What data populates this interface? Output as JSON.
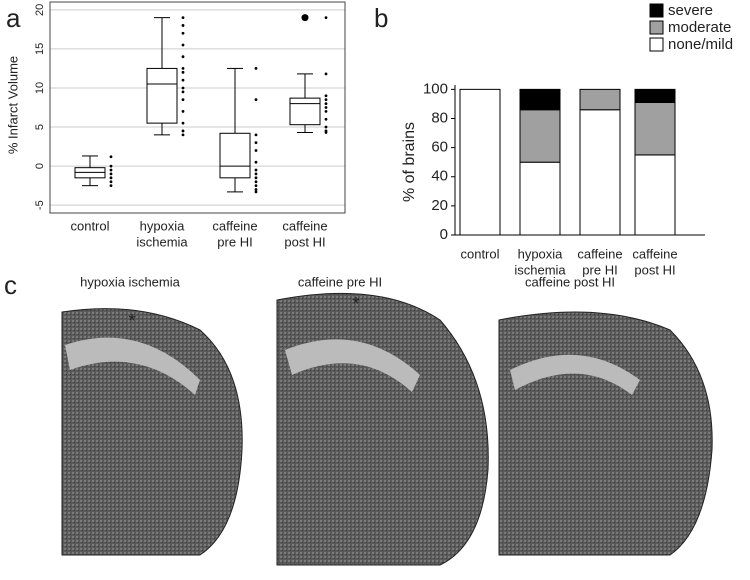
{
  "panel_labels": [
    "a",
    "b",
    "c"
  ],
  "chart_data": [
    {
      "type": "box",
      "y_label": "% Infarct Volume",
      "categories": [
        [
          "control"
        ],
        [
          "hypoxia",
          "ischemia"
        ],
        [
          "caffeine",
          "pre HI"
        ],
        [
          "caffeine",
          "post HI"
        ]
      ],
      "ylim": [
        -6,
        21
      ],
      "yticks": [
        -5,
        0,
        5,
        10,
        15,
        20
      ],
      "grid": true,
      "boxes": [
        {
          "whisker_low": -2.5,
          "q1": -1.5,
          "median": -0.8,
          "q3": -0.2,
          "whisker_high": 1.3,
          "points": [
            1.2,
            0,
            -0.5,
            -1,
            -1.5,
            -2,
            -2.5
          ],
          "outliers": []
        },
        {
          "whisker_low": 4,
          "q1": 5.5,
          "median": 10.5,
          "q3": 12.5,
          "whisker_high": 19,
          "points": [
            19,
            18,
            17,
            15.5,
            14,
            12.5,
            12,
            11,
            10,
            9.5,
            8.5,
            7,
            5.5,
            4.5,
            4
          ],
          "outliers": []
        },
        {
          "whisker_low": -3.3,
          "q1": -1.5,
          "median": 0,
          "q3": 4.2,
          "whisker_high": 12.5,
          "points": [
            12.5,
            8.5,
            4,
            3,
            2,
            0.5,
            -0.5,
            -1,
            -1.5,
            -2,
            -2.5,
            -3,
            -3.3
          ],
          "outliers": []
        },
        {
          "whisker_low": 4.3,
          "q1": 5.3,
          "median": 8,
          "q3": 8.7,
          "whisker_high": 11.8,
          "points": [
            19,
            11.8,
            9,
            8.5,
            8,
            7.5,
            7,
            6,
            5,
            4.5,
            4.3
          ],
          "outliers": [
            19
          ]
        }
      ]
    },
    {
      "type": "stacked_bar",
      "y_label": "% of brains",
      "categories": [
        [
          "control"
        ],
        [
          "hypoxia",
          "ischemia"
        ],
        [
          "caffeine",
          "pre HI"
        ],
        [
          "caffeine",
          "post HI"
        ]
      ],
      "ylim": [
        0,
        103
      ],
      "yticks": [
        0,
        20,
        40,
        60,
        80,
        100
      ],
      "legend": "upper-right",
      "series": [
        {
          "name": "none/mild",
          "color": "#ffffff",
          "values": [
            100,
            50,
            86,
            55
          ]
        },
        {
          "name": "moderate",
          "color": "#a0a0a0",
          "values": [
            0,
            36,
            14,
            36
          ]
        },
        {
          "name": "severe",
          "color": "#000000",
          "values": [
            0,
            14,
            0,
            9
          ]
        }
      ]
    }
  ],
  "images": [
    {
      "caption": "hypoxia ischemia",
      "asterisk": "*"
    },
    {
      "caption": "caffeine pre HI",
      "asterisk": "*"
    },
    {
      "caption": "caffeine post HI"
    }
  ]
}
